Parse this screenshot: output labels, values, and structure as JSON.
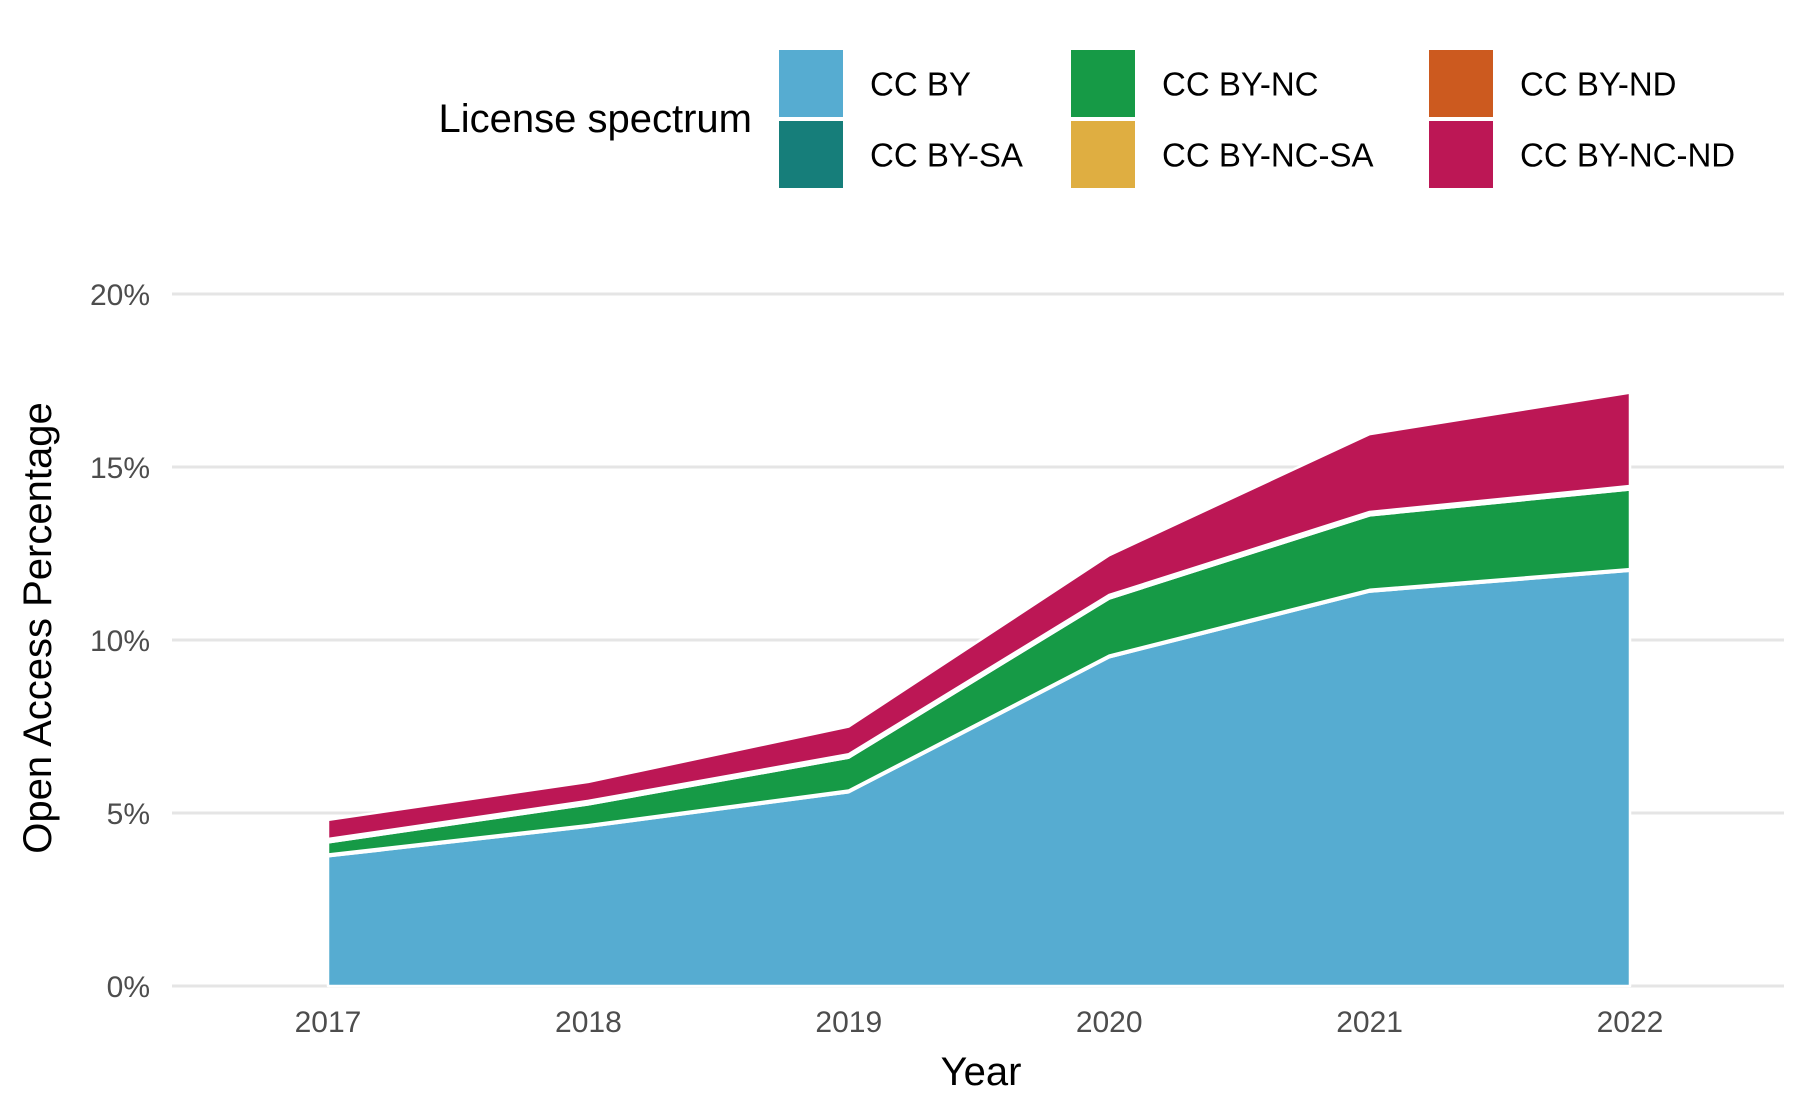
{
  "chart_data": {
    "type": "area",
    "stacked": true,
    "x": [
      2017,
      2018,
      2019,
      2020,
      2021,
      2022
    ],
    "xlabel": "Year",
    "ylabel": "Open Access Percentage",
    "ylim": [
      0,
      20
    ],
    "yticks": [
      0,
      5,
      10,
      15,
      20
    ],
    "ytick_labels": [
      "0%",
      "5%",
      "10%",
      "15%",
      "20%"
    ],
    "xtick_labels": [
      "2017",
      "2018",
      "2019",
      "2020",
      "2021",
      "2022"
    ],
    "grid": "horizontal",
    "legend": {
      "title": "License spectrum",
      "placement": "top"
    },
    "series": [
      {
        "name": "CC BY",
        "color": "#56ACD1",
        "values": [
          3.75,
          4.6,
          5.6,
          9.5,
          11.4,
          12.0
        ]
      },
      {
        "name": "CC BY-SA",
        "color": "#167E7A",
        "values": [
          0.05,
          0.05,
          0.05,
          0.05,
          0.05,
          0.05
        ]
      },
      {
        "name": "CC BY-NC",
        "color": "#169A46",
        "values": [
          0.35,
          0.6,
          0.95,
          1.65,
          2.15,
          2.3
        ]
      },
      {
        "name": "CC BY-NC-SA",
        "color": "#DFAE41",
        "values": [
          0.05,
          0.05,
          0.05,
          0.05,
          0.05,
          0.05
        ]
      },
      {
        "name": "CC BY-ND",
        "color": "#CC5A1F",
        "values": [
          0.05,
          0.05,
          0.05,
          0.05,
          0.05,
          0.05
        ]
      },
      {
        "name": "CC BY-NC-ND",
        "color": "#BC1755",
        "values": [
          0.55,
          0.55,
          0.8,
          1.15,
          2.25,
          2.7
        ]
      }
    ]
  }
}
